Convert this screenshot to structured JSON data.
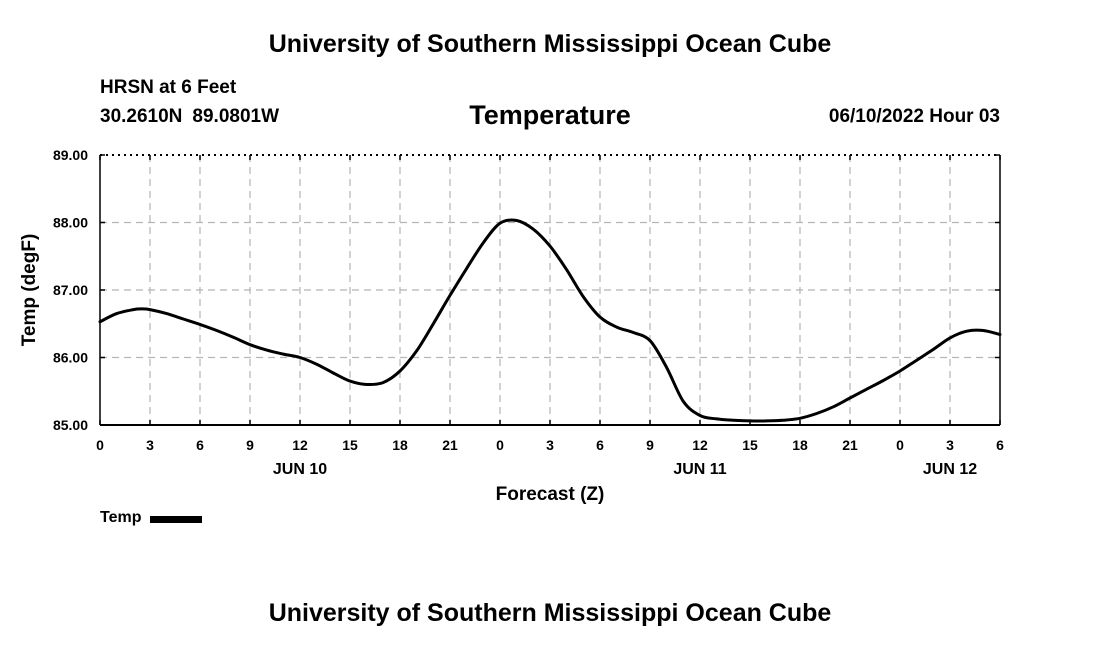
{
  "header": {
    "title": "University of Southern Mississippi Ocean Cube",
    "station": "HRSN at 6 Feet",
    "latitude": "30.2610N",
    "longitude": "89.0801W",
    "variable": "Temperature",
    "date": "06/10/2022 Hour 03"
  },
  "footer": {
    "title": "University of Southern Mississippi Ocean Cube"
  },
  "legend": {
    "label": "Temp"
  },
  "chart_data": {
    "type": "line",
    "title": "Temperature",
    "xlabel": "Forecast (Z)",
    "ylabel": "Temp (degF)",
    "xlim": [
      0,
      54
    ],
    "ylim": [
      85.0,
      89.0
    ],
    "x_ticks": [
      0,
      3,
      6,
      9,
      12,
      15,
      18,
      21,
      24,
      27,
      30,
      33,
      36,
      39,
      42,
      45,
      48,
      51,
      54
    ],
    "x_tick_labels": [
      "0",
      "3",
      "6",
      "9",
      "12",
      "15",
      "18",
      "21",
      "0",
      "3",
      "6",
      "9",
      "12",
      "15",
      "18",
      "21",
      "0",
      "3",
      "6"
    ],
    "y_ticks": [
      85.0,
      86.0,
      87.0,
      88.0,
      89.0
    ],
    "y_tick_labels": [
      "85.00",
      "86.00",
      "87.00",
      "88.00",
      "89.00"
    ],
    "day_labels": [
      {
        "x": 12,
        "label": "JUN 10"
      },
      {
        "x": 36,
        "label": "JUN 11"
      },
      {
        "x": 51,
        "label": "JUN 12"
      }
    ],
    "grid": true,
    "series": [
      {
        "name": "Temp",
        "color": "#000000",
        "x": [
          0,
          1,
          2,
          2.5,
          3,
          4,
          5,
          6,
          7,
          8,
          9,
          10,
          11,
          12,
          13,
          14,
          15,
          16,
          17,
          18,
          19,
          20,
          21,
          22,
          23,
          24,
          25,
          26,
          27,
          28,
          29,
          30,
          31,
          32,
          33,
          34,
          35,
          36,
          37,
          38,
          39,
          40,
          41,
          42,
          43,
          44,
          45,
          46,
          47,
          48,
          49,
          50,
          51,
          52,
          53,
          54
        ],
        "values": [
          86.53,
          86.65,
          86.71,
          86.72,
          86.71,
          86.65,
          86.57,
          86.49,
          86.4,
          86.3,
          86.19,
          86.11,
          86.05,
          86.0,
          85.9,
          85.77,
          85.65,
          85.6,
          85.63,
          85.8,
          86.1,
          86.5,
          86.92,
          87.32,
          87.7,
          87.99,
          88.03,
          87.9,
          87.65,
          87.3,
          86.9,
          86.6,
          86.45,
          86.37,
          86.25,
          85.85,
          85.35,
          85.14,
          85.09,
          85.07,
          85.06,
          85.06,
          85.07,
          85.1,
          85.17,
          85.27,
          85.4,
          85.53,
          85.66,
          85.8,
          85.96,
          86.12,
          86.29,
          86.39,
          86.4,
          86.34
        ]
      }
    ]
  }
}
